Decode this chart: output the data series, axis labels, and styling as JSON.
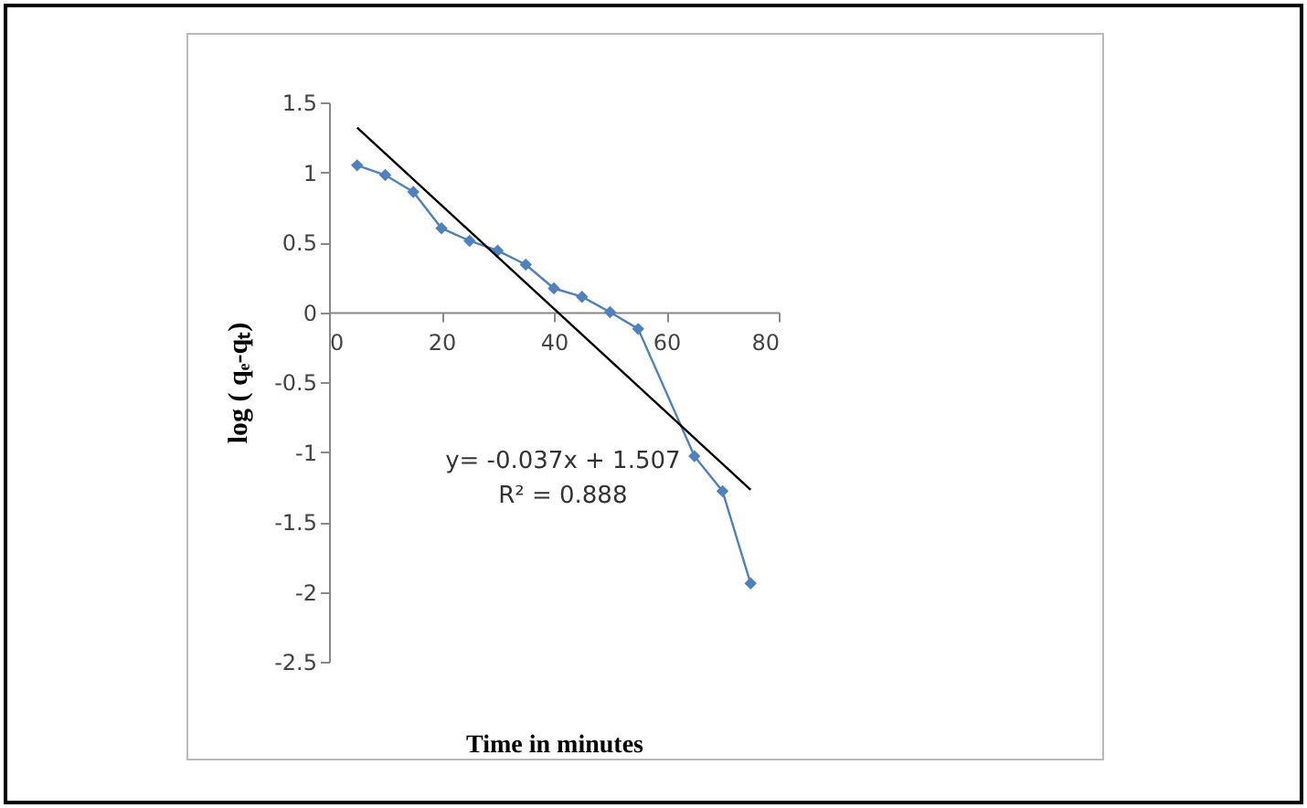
{
  "chart_data": {
    "type": "line",
    "xlabel": "Time in minutes",
    "ylabel": "log ( qₑ-qₜ)",
    "xlim": [
      0,
      80
    ],
    "xticks": [
      0,
      20,
      40,
      60,
      80
    ],
    "ylim": [
      -2.5,
      1.5
    ],
    "yticks": [
      -2.5,
      -2,
      -1.5,
      -1,
      -0.5,
      0,
      0.5,
      1,
      1.5
    ],
    "grid": false,
    "annotations": [
      "y= -0.037x + 1.507",
      "R² = 0.888"
    ],
    "series": [
      {
        "marker": "diamond",
        "color": "#4f81bd",
        "x": [
          5,
          10,
          15,
          20,
          25,
          30,
          35,
          40,
          45,
          50,
          55,
          65,
          70,
          75
        ],
        "values": [
          1.05,
          0.98,
          0.86,
          0.6,
          0.51,
          0.44,
          0.34,
          0.17,
          0.11,
          0.0,
          -0.12,
          -1.03,
          -1.28,
          -1.94
        ]
      },
      {
        "marker": "none",
        "color": "#000000",
        "x": [
          5,
          75
        ],
        "values": [
          1.32,
          -1.27
        ]
      }
    ]
  }
}
